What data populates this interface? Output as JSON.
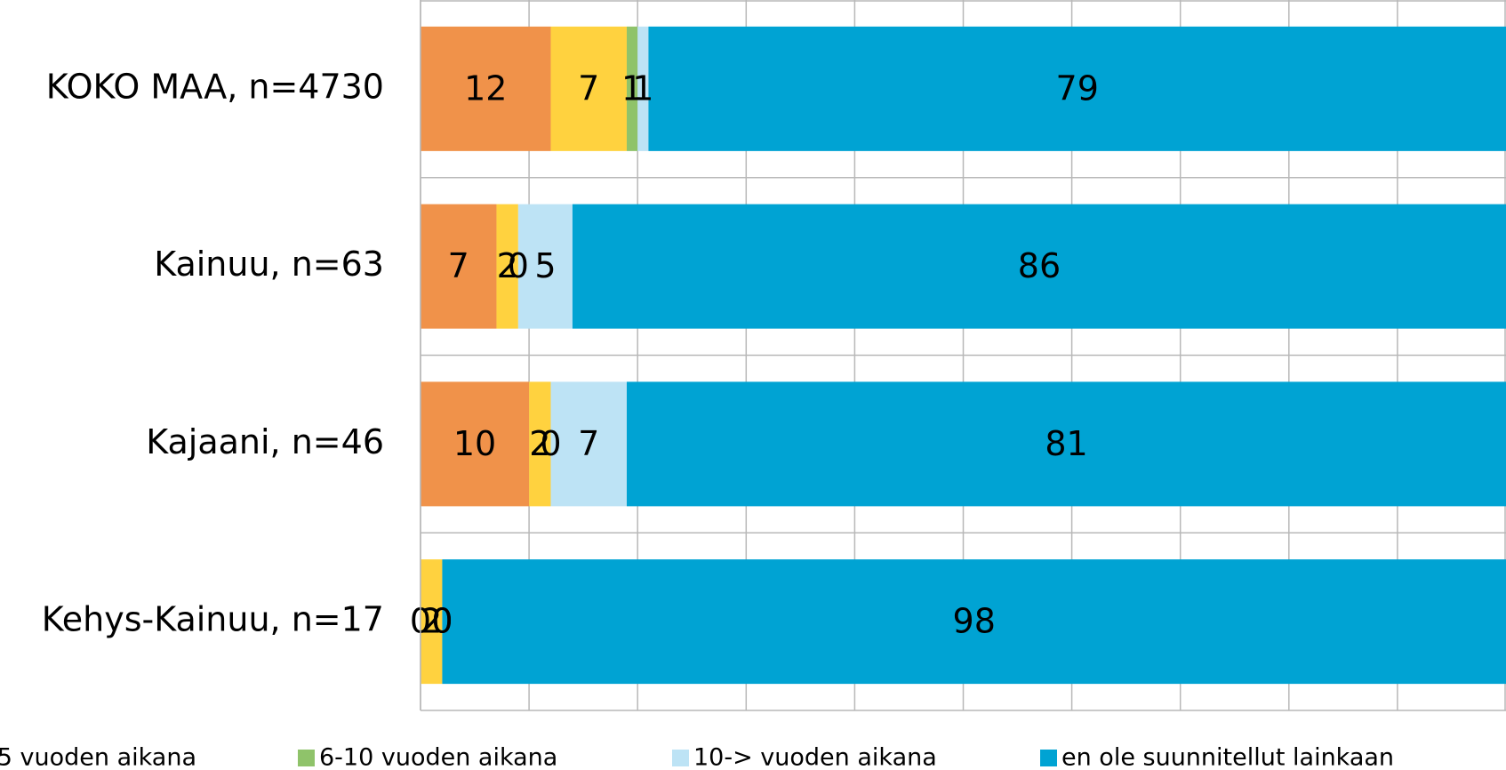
{
  "chart_data": {
    "type": "stacked-barh",
    "categories": [
      "KOKO MAA, n=4730",
      "Kainuu, n=63",
      "Kajaani, n=46",
      "Kehys-Kainuu, n=17"
    ],
    "series": [
      {
        "name": null,
        "color": "#f0924a",
        "values": [
          12,
          7,
          10,
          0
        ]
      },
      {
        "name": "5 vuoden aikana",
        "color": "#ffd23f",
        "values": [
          7,
          2,
          2,
          2
        ]
      },
      {
        "name": "6-10 vuoden aikana",
        "color": "#8fc36a",
        "values": [
          1,
          0,
          0,
          0
        ]
      },
      {
        "name": "10-> vuoden aikana",
        "color": "#bde3f5",
        "values": [
          1,
          5,
          7,
          0
        ]
      },
      {
        "name": "en ole suunnitellut lainkaan",
        "color": "#00a3d3",
        "values": [
          79,
          86,
          81,
          98
        ]
      }
    ],
    "xlim": [
      0,
      100
    ],
    "xticks": [
      0,
      10,
      20,
      30,
      40,
      50,
      60,
      70,
      80,
      90,
      100
    ],
    "grid": true
  }
}
